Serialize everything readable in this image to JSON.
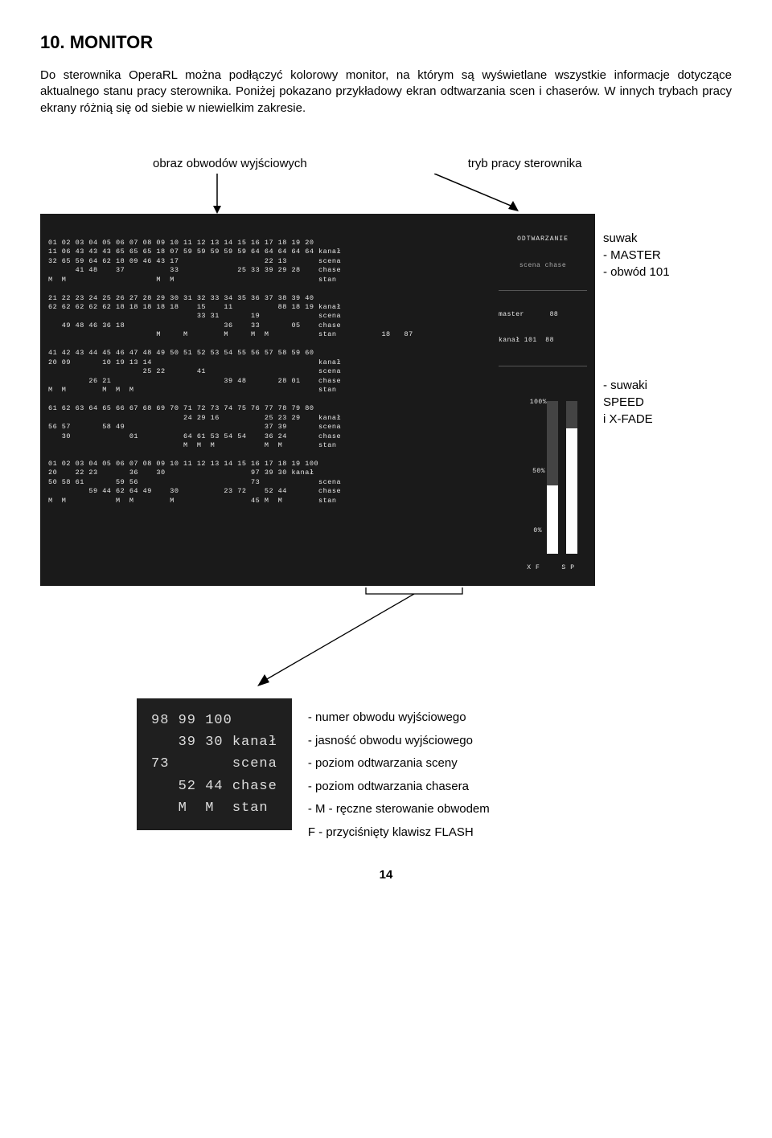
{
  "heading": "10. MONITOR",
  "para1": "Do sterownika OperaRL można podłączyć kolorowy monitor, na którym są wyświetlane wszystkie informacje dotyczące aktualnego stanu pracy sterownika. Poniżej pokazano przykładowy ekran odtwarzania scen i chaserów. W innych trybach pracy ekrany różnią się od siebie w niewielkim zakresie.",
  "label_left": "obraz obwodów wyjściowych",
  "label_right": "tryb pracy sterownika",
  "side": {
    "g1_l1": "suwak",
    "g1_l2": "- MASTER",
    "g1_l3": "- obwód 101",
    "g2_l1": "- suwaki",
    "g2_l2": "  SPEED",
    "g2_l3": "  i X-FADE"
  },
  "screen": {
    "header_mode": "ODTWARZANIE",
    "header_sub": "scena chase",
    "master_line": "master      88",
    "kanal_line": "kanał 101  88",
    "rows": [
      "01 02 03 04 05 06 07 08 09 10 11 12 13 14 15 16 17 18 19 20",
      "11 06 43 43 43 65 65 65 18 07 59 59 59 59 59 64 64 64 64 64 kanał",
      "32 65 59 64 62 18 09 46 43 17                   22 13       scena",
      "      41 48    37          33             25 33 39 29 28    chase",
      "M  M                    M  M                                stan",
      "",
      "21 22 23 24 25 26 27 28 29 30 31 32 33 34 35 36 37 38 39 40",
      "62 62 62 62 62 18 18 18 18 18    15    11          88 18 19 kanał",
      "                                 33 31       19             scena",
      "   49 48 46 36 18                      36    33       05    chase",
      "                        M     M        M     M  M           stan          18   87",
      "",
      "41 42 43 44 45 46 47 48 49 50 51 52 53 54 55 56 57 58 59 60",
      "20 09       10 19 13 14                                     kanał",
      "                     25 22       41                         scena",
      "         26 21                         39 48       28 01    chase",
      "M  M        M  M  M                                         stan",
      "",
      "61 62 63 64 65 66 67 68 69 70 71 72 73 74 75 76 77 78 79 80",
      "                              24 29 16          25 23 29    kanał",
      "56 57       58 49                               37 39       scena",
      "   30             01          64 61 53 54 54    36 24       chase",
      "                              M  M  M           M  M        stan",
      "",
      "01 02 03 04 05 06 07 08 09 10 11 12 13 14 15 16 17 18 19 100",
      "20    22 23       36    30                   97 39 30 kanał",
      "50 58 61       59 56                         73             scena",
      "         59 44 62 64 49    30          23 72    52 44       chase",
      "M  M           M  M        M                 45 M  M        stan"
    ],
    "pct100": "100%",
    "pct50": "50%",
    "pct0": "0%",
    "xf_sp": "XF  SP",
    "bar1_fill_pct": 45,
    "bar2_fill_pct": 82
  },
  "detail": {
    "lines": [
      "98 99 100",
      "   39 30 kanał",
      "73       scena",
      "   52 44 chase",
      "   M  M  stan"
    ],
    "list": [
      "- numer obwodu wyjściowego",
      "- jasność obwodu wyjściowego",
      "- poziom odtwarzania sceny",
      "- poziom odtwarzania chasera",
      "- M - ręczne sterowanie obwodem",
      "  F  - przyciśnięty klawisz FLASH"
    ]
  },
  "page_number": "14"
}
